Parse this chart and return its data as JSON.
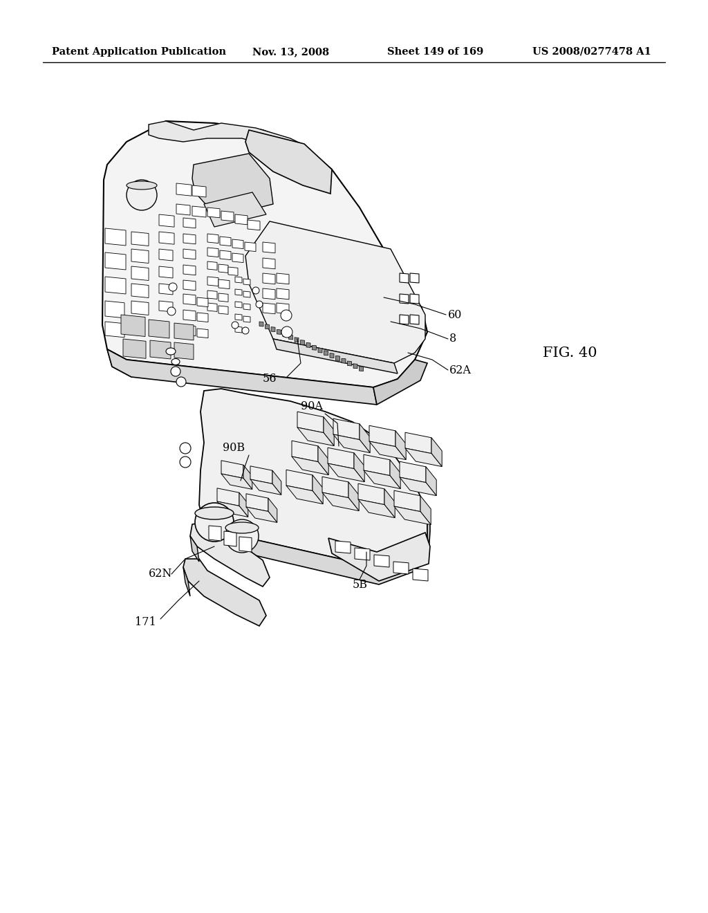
{
  "background_color": "#ffffff",
  "header_text": "Patent Application Publication",
  "header_date": "Nov. 13, 2008",
  "header_sheet": "Sheet 149 of 169",
  "header_patent": "US 2008/0277478 A1",
  "figure_label": "FIG. 40",
  "line_color": "#000000",
  "text_color": "#000000",
  "header_fontsize": 10.5,
  "label_fontsize": 11.5,
  "figure_label_fontsize": 15,
  "fig_width": 10.24,
  "fig_height": 13.2,
  "dpi": 100
}
